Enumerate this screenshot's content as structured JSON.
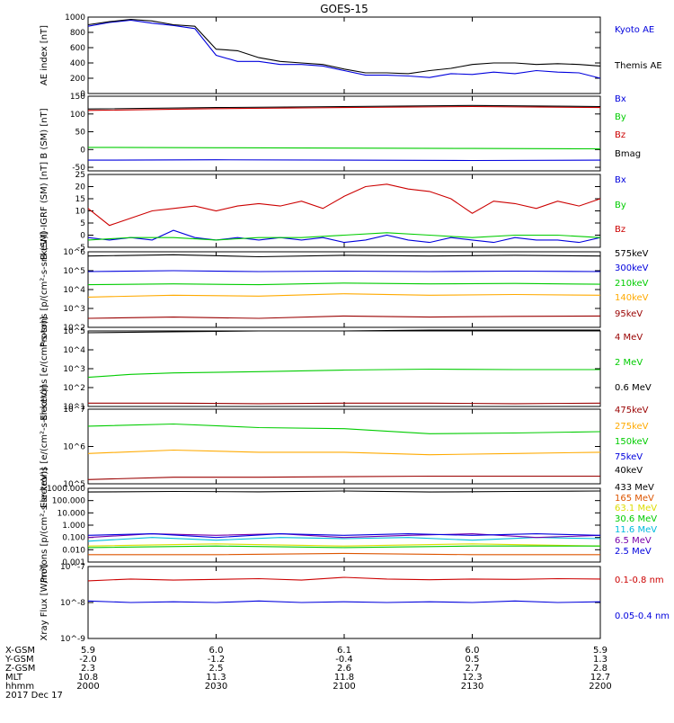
{
  "title": "GOES-15",
  "colors": {
    "black": "#000000",
    "blue": "#0000dd",
    "red": "#cc0000",
    "darkred": "#990000",
    "green": "#00cc00",
    "orange": "#ffaa00",
    "yellow": "#dddd00",
    "cyan": "#00bbdd",
    "purple": "#7700aa",
    "darkorange": "#dd5500"
  },
  "footer": {
    "row_labels": [
      "X-GSM",
      "Y-GSM",
      "Z-GSM",
      "MLT",
      "hhmm",
      "2017 Dec 17"
    ],
    "columns": [
      {
        "values": [
          "5.9",
          "-2.0",
          "2.3",
          "10.8",
          "2000"
        ]
      },
      {
        "values": [
          "6.0",
          "-1.2",
          "2.5",
          "11.3",
          "2030"
        ]
      },
      {
        "values": [
          "6.1",
          "-0.4",
          "2.6",
          "11.8",
          "2100"
        ]
      },
      {
        "values": [
          "6.0",
          "0.5",
          "2.7",
          "12.3",
          "2130"
        ]
      },
      {
        "values": [
          "5.9",
          "1.3",
          "2.8",
          "12.7",
          "2200"
        ]
      }
    ]
  },
  "chart_data": [
    {
      "type": "line",
      "ylabel": "AE index [nT]",
      "scale": "linear",
      "ylim": [
        0,
        1000
      ],
      "yticks": [
        "0",
        "200",
        "400",
        "600",
        "800",
        "1000"
      ],
      "xlim_minutes": [
        0,
        120
      ],
      "series": [
        {
          "name": "Kyoto AE",
          "color_key": "blue",
          "x": [
            0,
            5,
            10,
            15,
            20,
            25,
            30,
            35,
            40,
            45,
            50,
            55,
            60,
            65,
            70,
            75,
            80,
            85,
            90,
            95,
            100,
            105,
            110,
            115,
            120
          ],
          "y": [
            880,
            930,
            960,
            920,
            890,
            850,
            500,
            420,
            420,
            380,
            380,
            360,
            300,
            240,
            240,
            230,
            210,
            260,
            250,
            280,
            260,
            300,
            280,
            270,
            200
          ]
        },
        {
          "name": "Themis AE",
          "color_key": "black",
          "x": [
            0,
            5,
            10,
            15,
            20,
            25,
            30,
            35,
            40,
            45,
            50,
            55,
            60,
            65,
            70,
            75,
            80,
            85,
            90,
            95,
            100,
            105,
            110,
            115,
            120
          ],
          "y": [
            900,
            940,
            970,
            950,
            900,
            880,
            580,
            560,
            470,
            420,
            400,
            380,
            320,
            270,
            270,
            260,
            300,
            330,
            380,
            400,
            400,
            380,
            390,
            380,
            360
          ]
        }
      ]
    },
    {
      "type": "line",
      "ylabel": "B (SM) [nT]",
      "scale": "linear",
      "ylim": [
        -60,
        150
      ],
      "yticks": [
        "-50",
        "0",
        "50",
        "100",
        "150"
      ],
      "series": [
        {
          "name": "Bx",
          "color_key": "blue",
          "x": [
            0,
            30,
            60,
            90,
            120
          ],
          "y": [
            -30,
            -29,
            -30,
            -31,
            -30
          ]
        },
        {
          "name": "By",
          "color_key": "green",
          "x": [
            0,
            30,
            60,
            90,
            120
          ],
          "y": [
            6,
            5,
            4,
            3,
            2
          ]
        },
        {
          "name": "Bz",
          "color_key": "red",
          "x": [
            0,
            30,
            60,
            90,
            120
          ],
          "y": [
            110,
            115,
            118,
            121,
            118
          ]
        },
        {
          "name": "Bmag",
          "color_key": "black",
          "x": [
            0,
            30,
            60,
            90,
            120
          ],
          "y": [
            114,
            118,
            121,
            124,
            121
          ]
        }
      ]
    },
    {
      "type": "line",
      "ylabel": "B (SM)-IGRF (SM) [nT]",
      "scale": "linear",
      "ylim": [
        -5,
        25
      ],
      "yticks": [
        "-5",
        "0",
        "5",
        "10",
        "15",
        "20",
        "25"
      ],
      "series": [
        {
          "name": "Bx",
          "color_key": "blue",
          "x": [
            0,
            5,
            10,
            15,
            20,
            25,
            30,
            35,
            40,
            45,
            50,
            55,
            60,
            65,
            70,
            75,
            80,
            85,
            90,
            95,
            100,
            105,
            110,
            115,
            120
          ],
          "y": [
            -1,
            -2,
            -1,
            -2,
            2,
            -1,
            -2,
            -1,
            -2,
            -1,
            -2,
            -1,
            -3,
            -2,
            0,
            -2,
            -3,
            -1,
            -2,
            -3,
            -1,
            -2,
            -2,
            -3,
            -1
          ]
        },
        {
          "name": "By",
          "color_key": "green",
          "x": [
            0,
            10,
            20,
            30,
            40,
            50,
            60,
            70,
            80,
            90,
            100,
            110,
            120
          ],
          "y": [
            -2,
            -1,
            -1,
            -2,
            -1,
            -1,
            0,
            1,
            0,
            -1,
            0,
            0,
            -1
          ]
        },
        {
          "name": "Bz",
          "color_key": "red",
          "x": [
            0,
            5,
            10,
            15,
            20,
            25,
            30,
            35,
            40,
            45,
            50,
            55,
            60,
            65,
            70,
            75,
            80,
            85,
            90,
            95,
            100,
            105,
            110,
            115,
            120
          ],
          "y": [
            11,
            4,
            7,
            10,
            11,
            12,
            10,
            12,
            13,
            12,
            14,
            11,
            16,
            20,
            21,
            19,
            18,
            15,
            9,
            14,
            13,
            11,
            14,
            12,
            15
          ]
        }
      ]
    },
    {
      "type": "line",
      "ylabel": "Protons [p/(cm²-s-sr-keV)]",
      "scale": "log",
      "ylim_exp": [
        2,
        6
      ],
      "yticks": [
        "10^2",
        "10^3",
        "10^4",
        "10^5",
        "10^6"
      ],
      "series": [
        {
          "name": "575keV",
          "color_key": "black",
          "x": [
            0,
            20,
            40,
            60,
            80,
            100,
            120
          ],
          "y": [
            600000,
            700000,
            550000,
            650000,
            600000,
            650000,
            600000
          ]
        },
        {
          "name": "300keV",
          "color_key": "blue",
          "x": [
            0,
            20,
            40,
            60,
            80,
            100,
            120
          ],
          "y": [
            90000,
            100000,
            90000,
            95000,
            90000,
            95000,
            90000
          ]
        },
        {
          "name": "210keV",
          "color_key": "green",
          "x": [
            0,
            20,
            40,
            60,
            80,
            100,
            120
          ],
          "y": [
            18000,
            20000,
            18000,
            22000,
            20000,
            21000,
            19000
          ]
        },
        {
          "name": "140keV",
          "color_key": "orange",
          "x": [
            0,
            20,
            40,
            60,
            80,
            100,
            120
          ],
          "y": [
            4000,
            5000,
            4500,
            6000,
            5000,
            5500,
            5000
          ]
        },
        {
          "name": "95keV",
          "color_key": "darkred",
          "x": [
            0,
            20,
            40,
            60,
            80,
            100,
            120
          ],
          "y": [
            300,
            350,
            300,
            400,
            350,
            380,
            400
          ]
        }
      ]
    },
    {
      "type": "line",
      "ylabel": "Electrons [e/(cm²-s-sr)]",
      "scale": "log",
      "ylim_exp": [
        1,
        5
      ],
      "yticks": [
        "10^1",
        "10^2",
        "10^3",
        "10^4",
        "10^5"
      ],
      "series": [
        {
          "name": "4 MeV",
          "color_key": "darkred",
          "x": [
            0,
            20,
            40,
            60,
            80,
            100,
            120
          ],
          "y": [
            15,
            15,
            14,
            15,
            15,
            14,
            15
          ]
        },
        {
          "name": "2 MeV",
          "color_key": "green",
          "x": [
            0,
            10,
            20,
            40,
            60,
            80,
            100,
            120
          ],
          "y": [
            350,
            500,
            600,
            700,
            850,
            950,
            900,
            900
          ]
        },
        {
          "name": "0.6 MeV",
          "color_key": "black",
          "x": [
            0,
            20,
            40,
            60,
            80,
            100,
            120
          ],
          "y": [
            80000,
            90000,
            100000,
            100000,
            110000,
            110000,
            110000
          ]
        }
      ]
    },
    {
      "type": "line",
      "ylabel": "Electrons [e/(cm²-s-sr-keV)]",
      "scale": "log",
      "ylim_exp": [
        5,
        7
      ],
      "yticks": [
        "10^5",
        "10^6",
        "10^7"
      ],
      "series": [
        {
          "name": "475keV",
          "color_key": "darkred",
          "x": [
            0,
            20,
            40,
            60,
            80,
            100,
            120
          ],
          "y": [
            130000,
            150000,
            150000,
            155000,
            160000,
            160000,
            160000
          ]
        },
        {
          "name": "275keV",
          "color_key": "orange",
          "x": [
            0,
            20,
            40,
            60,
            80,
            100,
            120
          ],
          "y": [
            650000,
            800000,
            700000,
            700000,
            600000,
            650000,
            700000
          ]
        },
        {
          "name": "150keV",
          "color_key": "green",
          "x": [
            0,
            20,
            40,
            60,
            80,
            100,
            120
          ],
          "y": [
            3500000,
            4000000,
            3200000,
            3000000,
            2200000,
            2300000,
            2500000
          ]
        },
        {
          "name": "75keV",
          "color_key": "blue",
          "x": [
            0,
            120
          ],
          "y": [
            null,
            null
          ]
        },
        {
          "name": "40keV",
          "color_key": "black",
          "x": [
            0,
            120
          ],
          "y": [
            null,
            null
          ]
        }
      ]
    },
    {
      "type": "line",
      "ylabel": "Protons [p/(cm²-s-sr-keV)]",
      "scale": "log",
      "ylim_exp": [
        -3,
        3
      ],
      "yticks": [
        "0.001",
        "0.010",
        "0.100",
        "1.000",
        "10.000",
        "100.000",
        "1000.000"
      ],
      "series": [
        {
          "name": "433 MeV",
          "color_key": "black",
          "x": [
            0,
            20,
            40,
            60,
            80,
            100,
            120
          ],
          "y": [
            500,
            550,
            520,
            600,
            500,
            550,
            600
          ]
        },
        {
          "name": "165 MeV",
          "color_key": "darkorange",
          "x": [
            0,
            30,
            60,
            90,
            120
          ],
          "y": [
            0.004,
            0.004,
            0.005,
            0.004,
            0.004
          ]
        },
        {
          "name": "63.1 MeV",
          "color_key": "yellow",
          "x": [
            0,
            30,
            60,
            90,
            120
          ],
          "y": [
            0.02,
            0.03,
            0.02,
            0.03,
            0.02
          ]
        },
        {
          "name": "30.6 MeV",
          "color_key": "green",
          "x": [
            0,
            30,
            60,
            90,
            120
          ],
          "y": [
            0.015,
            0.02,
            0.015,
            0.02,
            0.02
          ]
        },
        {
          "name": "11.6 MeV",
          "color_key": "cyan",
          "x": [
            0,
            15,
            30,
            45,
            60,
            75,
            90,
            105,
            120
          ],
          "y": [
            0.05,
            0.1,
            0.06,
            0.1,
            0.08,
            0.1,
            0.06,
            0.1,
            0.08
          ]
        },
        {
          "name": "6.5 MeV",
          "color_key": "purple",
          "x": [
            0,
            15,
            30,
            45,
            60,
            75,
            90,
            105,
            120
          ],
          "y": [
            0.1,
            0.2,
            0.15,
            0.2,
            0.1,
            0.15,
            0.2,
            0.1,
            0.15
          ]
        },
        {
          "name": "2.5 MeV",
          "color_key": "blue",
          "x": [
            0,
            15,
            30,
            45,
            60,
            75,
            90,
            105,
            120
          ],
          "y": [
            0.15,
            0.2,
            0.1,
            0.2,
            0.15,
            0.2,
            0.15,
            0.2,
            0.15
          ]
        }
      ]
    },
    {
      "type": "line",
      "ylabel": "Xray Flux [W/m²]",
      "scale": "log",
      "ylim_exp": [
        -9,
        -7
      ],
      "yticks": [
        "10^-9",
        "10^-8",
        "10^-7"
      ],
      "series": [
        {
          "name": "0.1-0.8 nm",
          "color_key": "red",
          "x": [
            0,
            10,
            20,
            30,
            40,
            50,
            60,
            70,
            80,
            90,
            100,
            110,
            120
          ],
          "y": [
            4e-08,
            4.5e-08,
            4.2e-08,
            4.4e-08,
            4.6e-08,
            4.2e-08,
            5e-08,
            4.5e-08,
            4.3e-08,
            4.5e-08,
            4.4e-08,
            4.6e-08,
            4.5e-08
          ]
        },
        {
          "name": "0.05-0.4 nm",
          "color_key": "blue",
          "x": [
            0,
            10,
            20,
            30,
            40,
            50,
            60,
            70,
            80,
            90,
            100,
            110,
            120
          ],
          "y": [
            1.1e-08,
            1e-08,
            1.05e-08,
            1e-08,
            1.1e-08,
            1e-08,
            1.05e-08,
            1e-08,
            1.05e-08,
            1e-08,
            1.1e-08,
            1e-08,
            1.05e-08
          ]
        }
      ]
    }
  ]
}
